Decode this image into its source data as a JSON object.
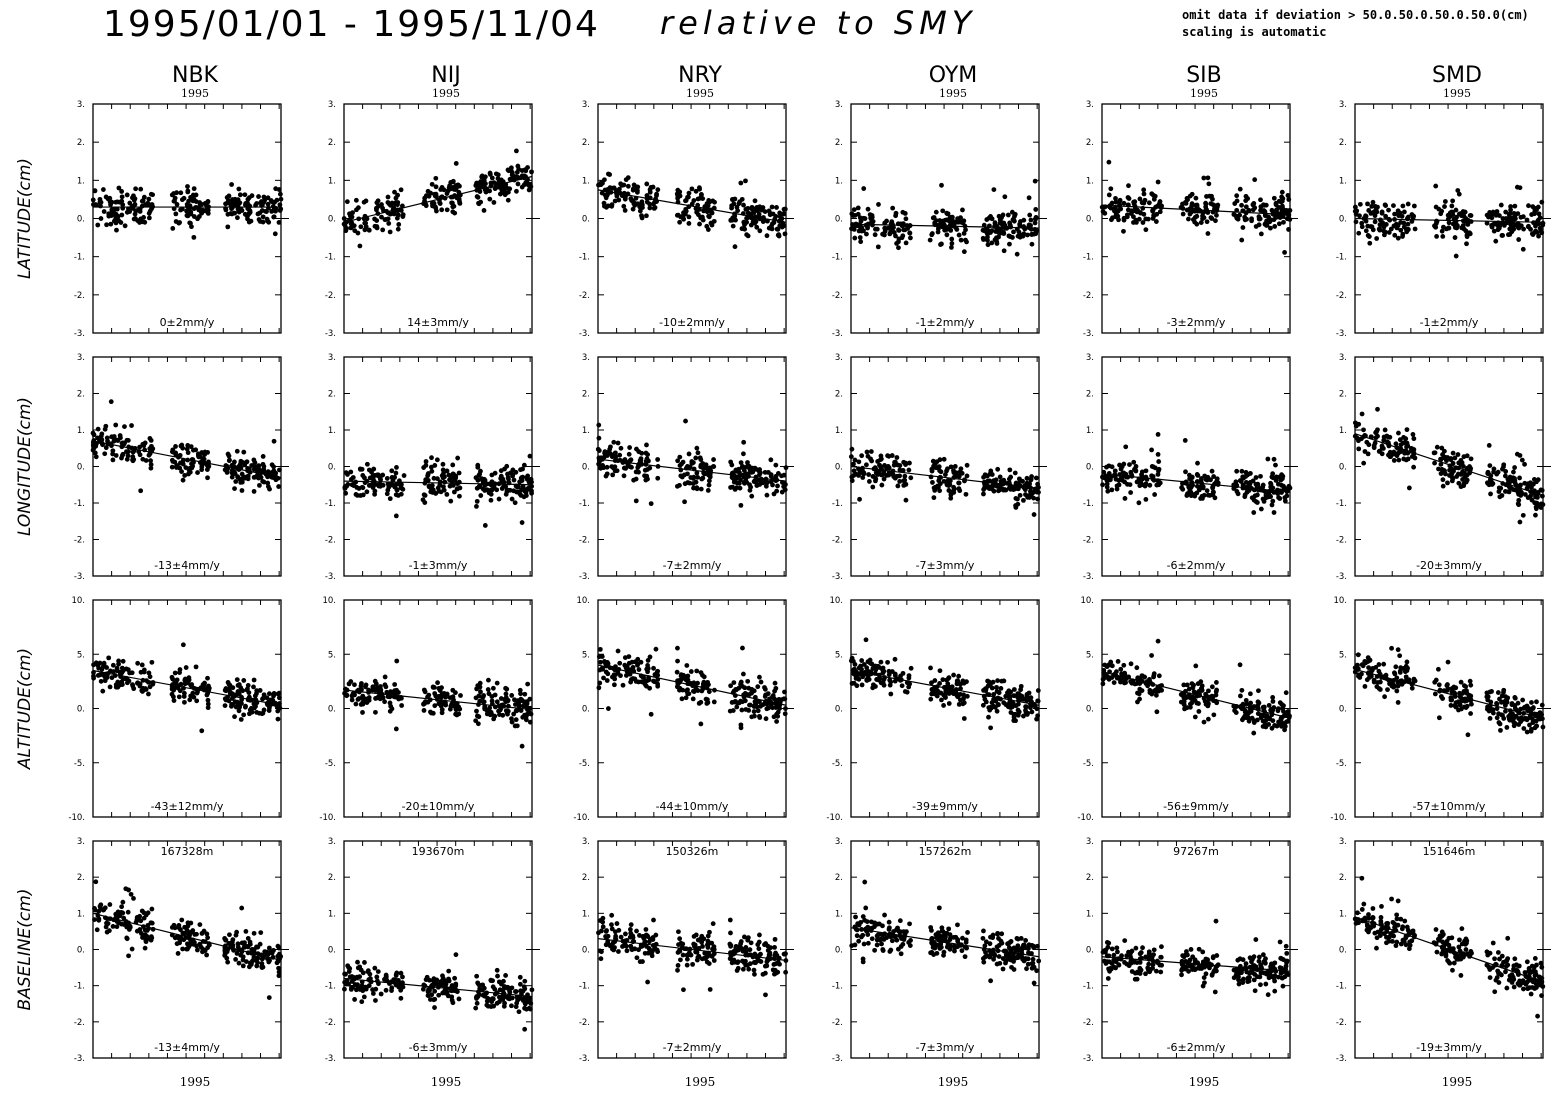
{
  "header": {
    "date_range": "1995/01/01  -  1995/11/04",
    "reference": "relative to SMY",
    "note_line1": "omit data if deviation > 50.0.50.0.50.0.50.0(cm)",
    "note_line2": "scaling is automatic"
  },
  "chart_data": {
    "type": "scatter",
    "year_label": "1995",
    "x": {
      "start": "1995-01-01",
      "end": "1995-11-04"
    },
    "stations": [
      "NBK",
      "NIJ",
      "NRY",
      "OYM",
      "SIB",
      "SMD"
    ],
    "components": [
      {
        "ylabel": "LATITUDE(cm)",
        "ylim": [
          -3,
          3
        ],
        "ticks": [
          "3.",
          "2.",
          "1.",
          "0.",
          "-1.",
          "-2.",
          "-3."
        ],
        "values_by_station": [
          {
            "rate": "0±2mm/y",
            "trend": [
              0.3,
              0.3
            ]
          },
          {
            "rate": "14±3mm/y",
            "trend": [
              -0.1,
              1.1
            ]
          },
          {
            "rate": "-10±2mm/y",
            "trend": [
              0.75,
              -0.1
            ]
          },
          {
            "rate": "-1±2mm/y",
            "trend": [
              -0.15,
              -0.25
            ]
          },
          {
            "rate": "-3±2mm/y",
            "trend": [
              0.35,
              0.1
            ]
          },
          {
            "rate": "-1±2mm/y",
            "trend": [
              0.0,
              -0.1
            ]
          }
        ]
      },
      {
        "ylabel": "LONGITUDE(cm)",
        "ylim": [
          -3,
          3
        ],
        "ticks": [
          "3.",
          "2.",
          "1.",
          "0.",
          "-1.",
          "-2.",
          "-3."
        ],
        "values_by_station": [
          {
            "rate": "-13±4mm/y",
            "trend": [
              0.7,
              -0.3
            ]
          },
          {
            "rate": "-1±3mm/y",
            "trend": [
              -0.4,
              -0.5
            ]
          },
          {
            "rate": "-7±2mm/y",
            "trend": [
              0.2,
              -0.4
            ]
          },
          {
            "rate": "-7±3mm/y",
            "trend": [
              0.0,
              -0.6
            ]
          },
          {
            "rate": "-6±2mm/y",
            "trend": [
              -0.2,
              -0.7
            ]
          },
          {
            "rate": "-20±3mm/y",
            "trend": [
              0.9,
              -0.8
            ]
          }
        ]
      },
      {
        "ylabel": "ALTITUDE(cm)",
        "ylim": [
          -10,
          10
        ],
        "ticks": [
          "10.",
          "5.",
          "0.",
          "-5.",
          "-10."
        ],
        "values_by_station": [
          {
            "rate": "-43±12mm/y",
            "trend": [
              3.5,
              0.3
            ]
          },
          {
            "rate": "-20±10mm/y",
            "trend": [
              1.7,
              -0.1
            ]
          },
          {
            "rate": "-44±10mm/y",
            "trend": [
              4.0,
              0.3
            ]
          },
          {
            "rate": "-39±9mm/y",
            "trend": [
              3.5,
              0.3
            ]
          },
          {
            "rate": "-56±9mm/y",
            "trend": [
              3.4,
              -0.9
            ]
          },
          {
            "rate": "-57±10mm/y",
            "trend": [
              3.6,
              -0.9
            ]
          }
        ]
      },
      {
        "ylabel": "BASELINE(cm)",
        "ylim": [
          -3,
          3
        ],
        "ticks": [
          "3.",
          "2.",
          "1.",
          "0.",
          "-1.",
          "-2.",
          "-3."
        ],
        "values_by_station": [
          {
            "rate": "-13±4mm/y",
            "length": "167328m",
            "trend": [
              1.0,
              -0.3
            ]
          },
          {
            "rate": "-6±3mm/y",
            "length": "193670m",
            "trend": [
              -0.8,
              -1.3
            ]
          },
          {
            "rate": "-7±2mm/y",
            "length": "150326m",
            "trend": [
              0.3,
              -0.3
            ]
          },
          {
            "rate": "-7±3mm/y",
            "length": "157262m",
            "trend": [
              0.6,
              -0.2
            ]
          },
          {
            "rate": "-6±2mm/y",
            "length": "97267m",
            "trend": [
              -0.2,
              -0.6
            ]
          },
          {
            "rate": "-19±3mm/y",
            "length": "151646m",
            "trend": [
              0.9,
              -0.9
            ]
          }
        ]
      }
    ],
    "grid": false,
    "legend": "none"
  }
}
